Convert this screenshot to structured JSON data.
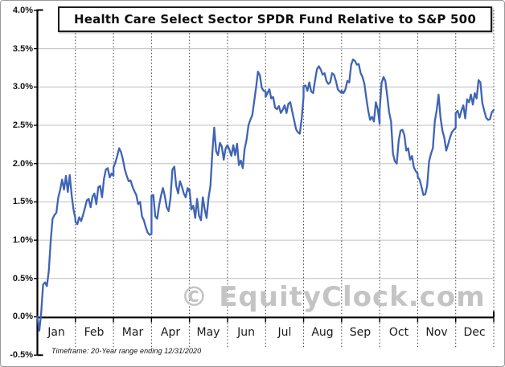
{
  "footnote": "Timeframe: 20-Year range ending 12/31/2020",
  "watermark": "© EquityClock.com",
  "chart_data": {
    "type": "line",
    "title": "Health Care Select Sector SPDR Fund Relative to S&P 500",
    "x_categories": [
      "Jan",
      "Feb",
      "Mar",
      "Apr",
      "May",
      "Jun",
      "Jul",
      "Aug",
      "Sep",
      "Oct",
      "Nov",
      "Dec"
    ],
    "y_tick_labels": [
      "4.0%",
      "3.5%",
      "3.0%",
      "2.5%",
      "2.0%",
      "1.5%",
      "1.0%",
      "0.5%",
      "0.0%",
      "-0.5%"
    ],
    "ylim": [
      -0.5,
      4.0
    ],
    "y_unit": "percent",
    "grid": true,
    "legend": "none",
    "line_color": "#3E64B4",
    "values_by_month": {
      "Jan": [
        0.0,
        -0.18,
        0.05,
        0.42,
        0.45,
        0.4,
        0.6,
        1.0,
        1.28,
        1.33,
        1.36,
        1.56,
        1.66,
        1.79,
        1.66,
        1.84,
        1.63,
        1.85,
        1.59,
        1.4,
        1.28
      ],
      "Feb": [
        1.24,
        1.21,
        1.3,
        1.25,
        1.33,
        1.42,
        1.52,
        1.54,
        1.43,
        1.57,
        1.61,
        1.47,
        1.69,
        1.71,
        1.56,
        1.8,
        1.92,
        1.94,
        1.82,
        1.87,
        1.84
      ],
      "Mar": [
        1.95,
        2.01,
        2.1,
        2.2,
        2.15,
        2.05,
        1.92,
        1.84,
        1.77,
        1.78,
        1.7,
        1.64,
        1.59,
        1.47,
        1.5,
        1.31,
        1.26,
        1.17,
        1.1,
        1.07,
        1.08
      ],
      "Apr": [
        1.58,
        1.59,
        1.31,
        1.28,
        1.45,
        1.58,
        1.68,
        1.58,
        1.43,
        1.38,
        1.55,
        1.92,
        1.96,
        1.71,
        1.61,
        1.77,
        1.7,
        1.61,
        1.56,
        1.68,
        1.63
      ],
      "May": [
        1.66,
        1.4,
        1.45,
        1.29,
        1.54,
        1.32,
        1.26,
        1.56,
        1.4,
        1.29,
        1.55,
        1.71,
        2.13,
        2.47,
        2.16,
        2.11,
        2.27,
        2.22,
        2.05,
        2.2,
        2.24
      ],
      "Jun": [
        2.24,
        2.18,
        2.1,
        2.24,
        2.11,
        2.26,
        1.98,
        2.04,
        1.94,
        2.19,
        2.31,
        2.5,
        2.57,
        2.63,
        2.81,
        2.99,
        3.2,
        3.15,
        2.99,
        2.95,
        2.94
      ],
      "Jul": [
        2.87,
        2.92,
        2.97,
        2.85,
        2.87,
        2.73,
        2.71,
        2.75,
        2.66,
        2.7,
        2.76,
        2.66,
        2.78,
        2.8,
        2.68,
        2.57,
        2.45,
        2.41,
        2.39,
        2.59,
        2.87
      ],
      "Aug": [
        3.01,
        3.02,
        2.95,
        3.06,
        2.94,
        2.92,
        3.08,
        3.23,
        3.27,
        3.23,
        3.16,
        3.18,
        3.08,
        3.04,
        3.06,
        3.18,
        3.16,
        3.08,
        2.97,
        2.94,
        2.92
      ],
      "Sep": [
        2.95,
        2.92,
        2.97,
        3.08,
        3.06,
        3.29,
        3.36,
        3.34,
        3.29,
        3.3,
        3.18,
        3.13,
        3.04,
        2.85,
        2.69,
        2.57,
        2.61,
        2.55,
        2.8,
        2.71,
        2.52
      ],
      "Oct": [
        2.69,
        3.05,
        3.13,
        3.08,
        2.88,
        2.67,
        2.55,
        2.13,
        2.03,
        2.0,
        2.3,
        2.43,
        2.44,
        2.37,
        2.17,
        2.2,
        2.05,
        2.1,
        1.95,
        1.9,
        1.87
      ],
      "Nov": [
        1.83,
        1.79,
        1.7,
        1.59,
        1.6,
        1.71,
        2.03,
        2.13,
        2.2,
        2.55,
        2.7,
        2.9,
        2.6,
        2.43,
        2.34,
        2.17,
        2.25,
        2.34,
        2.41,
        2.44,
        2.47
      ],
      "Dec": [
        2.66,
        2.69,
        2.6,
        2.69,
        2.76,
        2.59,
        2.84,
        2.8,
        2.9,
        2.77,
        2.92,
        2.85,
        3.09,
        3.06,
        2.79,
        2.69,
        2.6,
        2.57,
        2.58,
        2.67,
        2.7
      ]
    }
  }
}
